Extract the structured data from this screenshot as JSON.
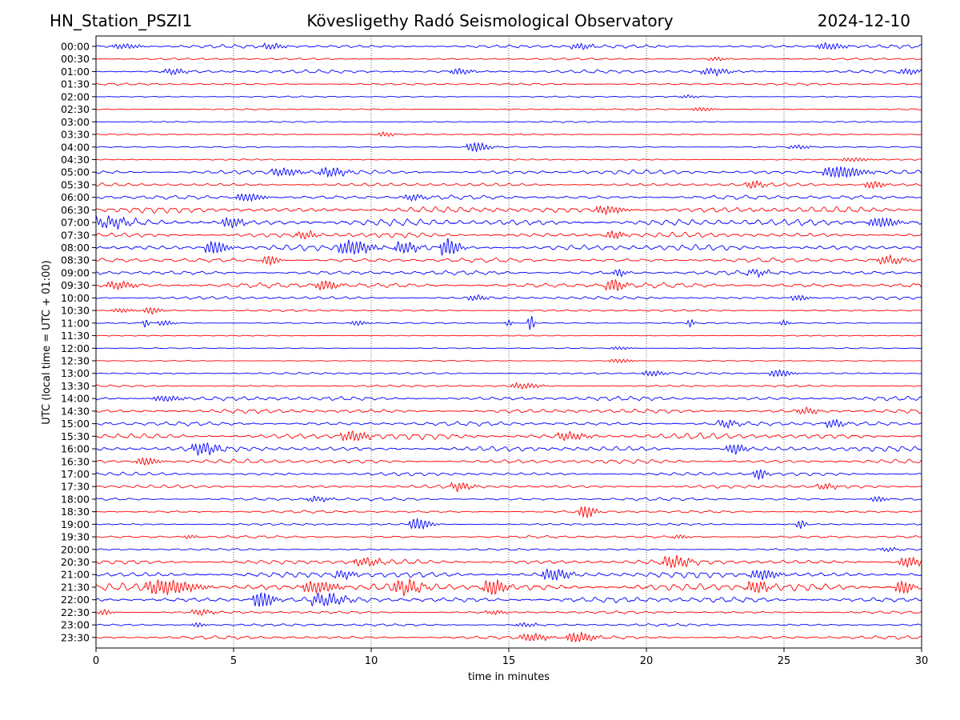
{
  "header": {
    "station": "HN_Station_PSZI1",
    "observatory": "Kövesligethy Radó Seismological Observatory",
    "date": "2024-12-10"
  },
  "chart_data": {
    "type": "line",
    "title": "Kövesligethy Radó Seismological Observatory",
    "xlabel": "time in minutes",
    "ylabel": "UTC (local time = UTC + 01:00)",
    "xlim": [
      0,
      30
    ],
    "xticks": [
      0,
      5,
      10,
      15,
      20,
      25,
      30
    ],
    "gridlines_x": [
      5,
      10,
      15,
      20,
      25
    ],
    "colors": [
      "#0000ff",
      "#ff0000"
    ],
    "color_rule": "alternating: full hours blue, half hours red",
    "rows": [
      {
        "label": "00:00",
        "amp": 2,
        "events": [
          {
            "t": 1.0,
            "a": 2.5,
            "d": 0.8
          },
          {
            "t": 6.4,
            "a": 3,
            "d": 0.6
          },
          {
            "t": 17.6,
            "a": 3,
            "d": 0.6
          },
          {
            "t": 26.6,
            "a": 3.5,
            "d": 0.8
          }
        ]
      },
      {
        "label": "00:30",
        "amp": 1.2,
        "events": [
          {
            "t": 22.5,
            "a": 2,
            "d": 0.5
          }
        ]
      },
      {
        "label": "01:00",
        "amp": 2,
        "events": [
          {
            "t": 2.8,
            "a": 3,
            "d": 0.6
          },
          {
            "t": 13.2,
            "a": 3,
            "d": 0.6
          },
          {
            "t": 22.4,
            "a": 3.5,
            "d": 0.8
          },
          {
            "t": 29.5,
            "a": 3,
            "d": 0.6
          }
        ]
      },
      {
        "label": "01:30",
        "amp": 1.2,
        "events": []
      },
      {
        "label": "02:00",
        "amp": 0.8,
        "events": [
          {
            "t": 21.5,
            "a": 1.5,
            "d": 0.5
          }
        ]
      },
      {
        "label": "02:30",
        "amp": 0.8,
        "events": [
          {
            "t": 22.0,
            "a": 2,
            "d": 0.6
          }
        ]
      },
      {
        "label": "03:00",
        "amp": 0.8,
        "events": []
      },
      {
        "label": "03:30",
        "amp": 0.8,
        "events": [
          {
            "t": 10.5,
            "a": 2.5,
            "d": 0.4
          }
        ]
      },
      {
        "label": "04:00",
        "amp": 0.8,
        "events": [
          {
            "t": 13.8,
            "a": 5,
            "d": 0.6
          },
          {
            "t": 25.5,
            "a": 2,
            "d": 0.6
          }
        ]
      },
      {
        "label": "04:30",
        "amp": 0.8,
        "events": [
          {
            "t": 27.5,
            "a": 2,
            "d": 0.8
          }
        ]
      },
      {
        "label": "05:00",
        "amp": 2.5,
        "events": [
          {
            "t": 6.8,
            "a": 4,
            "d": 0.8
          },
          {
            "t": 8.5,
            "a": 4.5,
            "d": 0.8
          },
          {
            "t": 27.0,
            "a": 6,
            "d": 1.2
          }
        ]
      },
      {
        "label": "05:30",
        "amp": 2,
        "events": [
          {
            "t": 23.9,
            "a": 4,
            "d": 0.5
          },
          {
            "t": 28.2,
            "a": 4,
            "d": 0.5
          }
        ]
      },
      {
        "label": "06:00",
        "amp": 2.5,
        "events": [
          {
            "t": 5.5,
            "a": 4,
            "d": 0.8
          },
          {
            "t": 11.5,
            "a": 3,
            "d": 0.6
          }
        ]
      },
      {
        "label": "06:30",
        "amp": 3.5,
        "events": [
          {
            "t": 18.6,
            "a": 4,
            "d": 0.8
          }
        ]
      },
      {
        "label": "07:00",
        "amp": 4,
        "events": [
          {
            "t": 0.5,
            "a": 5,
            "d": 1
          },
          {
            "t": 4.9,
            "a": 5,
            "d": 0.6
          },
          {
            "t": 28.5,
            "a": 5,
            "d": 0.8
          }
        ]
      },
      {
        "label": "07:30",
        "amp": 3,
        "events": [
          {
            "t": 7.6,
            "a": 4,
            "d": 0.5
          },
          {
            "t": 18.8,
            "a": 4,
            "d": 0.5
          }
        ]
      },
      {
        "label": "08:00",
        "amp": 3.5,
        "events": [
          {
            "t": 4.3,
            "a": 7,
            "d": 0.6
          },
          {
            "t": 9.3,
            "a": 7,
            "d": 1
          },
          {
            "t": 11.2,
            "a": 6,
            "d": 0.6
          },
          {
            "t": 12.8,
            "a": 9,
            "d": 0.5
          }
        ]
      },
      {
        "label": "08:30",
        "amp": 2.5,
        "events": [
          {
            "t": 6.3,
            "a": 5,
            "d": 0.4
          },
          {
            "t": 28.8,
            "a": 4,
            "d": 0.8
          }
        ]
      },
      {
        "label": "09:00",
        "amp": 2.5,
        "events": [
          {
            "t": 19.0,
            "a": 4,
            "d": 0.3
          },
          {
            "t": 24.0,
            "a": 3,
            "d": 0.6
          }
        ]
      },
      {
        "label": "09:30",
        "amp": 3,
        "events": [
          {
            "t": 0.8,
            "a": 4,
            "d": 0.8
          },
          {
            "t": 8.3,
            "a": 5,
            "d": 0.6
          },
          {
            "t": 18.8,
            "a": 6,
            "d": 0.5
          }
        ]
      },
      {
        "label": "10:00",
        "amp": 1.8,
        "events": [
          {
            "t": 13.8,
            "a": 3,
            "d": 0.5
          },
          {
            "t": 25.5,
            "a": 3,
            "d": 0.5
          }
        ]
      },
      {
        "label": "10:30",
        "amp": 1.2,
        "events": [
          {
            "t": 0.9,
            "a": 2,
            "d": 0.6
          },
          {
            "t": 2.0,
            "a": 4,
            "d": 0.4
          }
        ]
      },
      {
        "label": "11:00",
        "amp": 0.8,
        "events": [
          {
            "t": 1.8,
            "a": 5,
            "d": 0.1
          },
          {
            "t": 2.5,
            "a": 2.5,
            "d": 0.4
          },
          {
            "t": 9.5,
            "a": 2.5,
            "d": 0.4
          },
          {
            "t": 15.0,
            "a": 4,
            "d": 0.1
          },
          {
            "t": 15.8,
            "a": 9,
            "d": 0.1
          },
          {
            "t": 21.6,
            "a": 5,
            "d": 0.1
          },
          {
            "t": 25.0,
            "a": 3,
            "d": 0.2
          }
        ]
      },
      {
        "label": "11:30",
        "amp": 0.6,
        "events": []
      },
      {
        "label": "12:00",
        "amp": 0.6,
        "events": [
          {
            "t": 19.0,
            "a": 1.5,
            "d": 0.6
          }
        ]
      },
      {
        "label": "12:30",
        "amp": 0.6,
        "events": [
          {
            "t": 19.0,
            "a": 2,
            "d": 0.6
          }
        ]
      },
      {
        "label": "13:00",
        "amp": 1.2,
        "events": [
          {
            "t": 20.2,
            "a": 3,
            "d": 0.6
          },
          {
            "t": 24.8,
            "a": 4,
            "d": 0.6
          }
        ]
      },
      {
        "label": "13:30",
        "amp": 1.2,
        "events": [
          {
            "t": 15.5,
            "a": 3,
            "d": 0.8
          }
        ]
      },
      {
        "label": "14:00",
        "amp": 2.5,
        "events": [
          {
            "t": 2.5,
            "a": 3,
            "d": 0.8
          }
        ]
      },
      {
        "label": "14:30",
        "amp": 2.5,
        "events": [
          {
            "t": 25.8,
            "a": 3,
            "d": 0.6
          }
        ]
      },
      {
        "label": "15:00",
        "amp": 2.5,
        "events": [
          {
            "t": 22.9,
            "a": 4,
            "d": 0.5
          },
          {
            "t": 26.8,
            "a": 4,
            "d": 0.5
          }
        ]
      },
      {
        "label": "15:30",
        "amp": 3.5,
        "events": [
          {
            "t": 9.3,
            "a": 5,
            "d": 0.8
          },
          {
            "t": 17.2,
            "a": 4,
            "d": 0.8
          }
        ]
      },
      {
        "label": "16:00",
        "amp": 3,
        "events": [
          {
            "t": 3.9,
            "a": 6,
            "d": 0.8
          },
          {
            "t": 23.2,
            "a": 5,
            "d": 0.5
          }
        ]
      },
      {
        "label": "16:30",
        "amp": 2.5,
        "events": [
          {
            "t": 1.8,
            "a": 4,
            "d": 0.6
          }
        ]
      },
      {
        "label": "17:00",
        "amp": 2,
        "events": [
          {
            "t": 24.1,
            "a": 6,
            "d": 0.3
          }
        ]
      },
      {
        "label": "17:30",
        "amp": 2,
        "events": [
          {
            "t": 13.2,
            "a": 4,
            "d": 0.6
          },
          {
            "t": 26.5,
            "a": 3,
            "d": 0.5
          }
        ]
      },
      {
        "label": "18:00",
        "amp": 1.8,
        "events": [
          {
            "t": 8.0,
            "a": 3,
            "d": 0.6
          },
          {
            "t": 28.4,
            "a": 3,
            "d": 0.4
          }
        ]
      },
      {
        "label": "18:30",
        "amp": 1.5,
        "events": [
          {
            "t": 17.8,
            "a": 7,
            "d": 0.4
          }
        ]
      },
      {
        "label": "19:00",
        "amp": 1.2,
        "events": [
          {
            "t": 11.7,
            "a": 6,
            "d": 0.6
          },
          {
            "t": 25.6,
            "a": 5,
            "d": 0.2
          }
        ]
      },
      {
        "label": "19:30",
        "amp": 1.5,
        "events": [
          {
            "t": 3.4,
            "a": 2,
            "d": 0.3
          },
          {
            "t": 21.2,
            "a": 2,
            "d": 0.4
          }
        ]
      },
      {
        "label": "20:00",
        "amp": 1.2,
        "events": [
          {
            "t": 28.8,
            "a": 2,
            "d": 0.5
          }
        ]
      },
      {
        "label": "20:30",
        "amp": 3,
        "events": [
          {
            "t": 9.8,
            "a": 4,
            "d": 0.8
          },
          {
            "t": 21.0,
            "a": 6,
            "d": 0.8
          },
          {
            "t": 29.5,
            "a": 5,
            "d": 0.6
          }
        ]
      },
      {
        "label": "21:00",
        "amp": 3.5,
        "events": [
          {
            "t": 9.0,
            "a": 4,
            "d": 0.6
          },
          {
            "t": 16.6,
            "a": 6,
            "d": 0.8
          },
          {
            "t": 24.2,
            "a": 5,
            "d": 0.8
          }
        ]
      },
      {
        "label": "21:30",
        "amp": 4.5,
        "events": [
          {
            "t": 2.5,
            "a": 7,
            "d": 1.6
          },
          {
            "t": 8.0,
            "a": 6,
            "d": 1
          },
          {
            "t": 11.2,
            "a": 7,
            "d": 0.8
          },
          {
            "t": 14.4,
            "a": 8,
            "d": 0.6
          },
          {
            "t": 24.0,
            "a": 6,
            "d": 0.6
          },
          {
            "t": 29.3,
            "a": 7,
            "d": 0.4
          }
        ]
      },
      {
        "label": "22:00",
        "amp": 3.5,
        "events": [
          {
            "t": 6.0,
            "a": 8,
            "d": 0.6
          },
          {
            "t": 8.3,
            "a": 6,
            "d": 1
          }
        ]
      },
      {
        "label": "22:30",
        "amp": 1.5,
        "events": [
          {
            "t": 0.3,
            "a": 3,
            "d": 0.3
          },
          {
            "t": 3.8,
            "a": 3,
            "d": 0.6
          },
          {
            "t": 14.5,
            "a": 2,
            "d": 0.6
          }
        ]
      },
      {
        "label": "23:00",
        "amp": 1.5,
        "events": [
          {
            "t": 3.7,
            "a": 2.5,
            "d": 0.3
          },
          {
            "t": 15.6,
            "a": 2,
            "d": 0.6
          }
        ]
      },
      {
        "label": "23:30",
        "amp": 2,
        "events": [
          {
            "t": 15.8,
            "a": 4,
            "d": 0.8
          },
          {
            "t": 17.5,
            "a": 5,
            "d": 0.8
          }
        ]
      }
    ]
  }
}
